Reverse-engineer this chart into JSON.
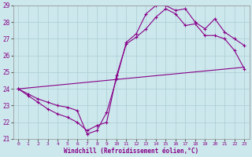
{
  "xlabel": "Windchill (Refroidissement éolien,°C)",
  "bg_color": "#cce8ec",
  "line_color": "#880088",
  "grid_color": "#aaccd4",
  "xlim": [
    -0.5,
    23.5
  ],
  "ylim": [
    21,
    29
  ],
  "xticks": [
    0,
    1,
    2,
    3,
    4,
    5,
    6,
    7,
    8,
    9,
    10,
    11,
    12,
    13,
    14,
    15,
    16,
    17,
    18,
    19,
    20,
    21,
    22,
    23
  ],
  "yticks": [
    21,
    22,
    23,
    24,
    25,
    26,
    27,
    28,
    29
  ],
  "line1_x": [
    0,
    1,
    2,
    3,
    4,
    5,
    6,
    7,
    8,
    9,
    10,
    11,
    12,
    13,
    14,
    15,
    16,
    17,
    18,
    19,
    20,
    21,
    22,
    23
  ],
  "line1_y": [
    24.0,
    23.7,
    23.4,
    23.2,
    23.0,
    22.9,
    22.7,
    21.3,
    21.5,
    22.6,
    24.6,
    26.8,
    27.3,
    28.5,
    29.0,
    29.0,
    28.7,
    28.8,
    28.0,
    27.6,
    28.2,
    27.4,
    27.0,
    26.6
  ],
  "line2_x": [
    0,
    1,
    2,
    3,
    4,
    5,
    6,
    7,
    8,
    9,
    10,
    11,
    12,
    13,
    14,
    15,
    16,
    17,
    18,
    19,
    20,
    21,
    22,
    23
  ],
  "line2_y": [
    24.0,
    23.6,
    23.2,
    22.8,
    22.5,
    22.3,
    22.0,
    21.5,
    21.8,
    22.0,
    24.8,
    26.7,
    27.1,
    27.6,
    28.3,
    28.8,
    28.5,
    27.8,
    27.9,
    27.2,
    27.2,
    27.0,
    26.3,
    25.2
  ],
  "line3_x": [
    0,
    23
  ],
  "line3_y": [
    24.0,
    25.3
  ]
}
